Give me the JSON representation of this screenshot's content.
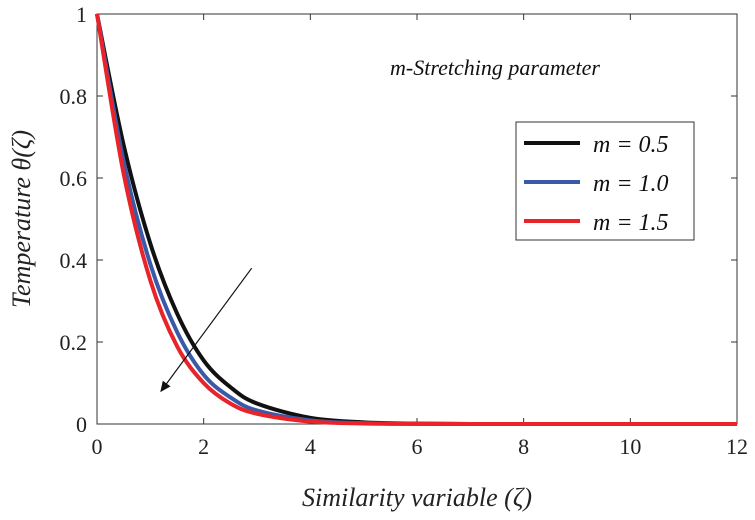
{
  "chart_data": {
    "type": "line",
    "title": "m-Stretching parameter",
    "xlabel": "Similarity variable (ζ)",
    "ylabel": "Temperature θ(ζ)",
    "xlim": [
      0,
      12
    ],
    "ylim": [
      0,
      1
    ],
    "xticks": [
      0,
      2,
      4,
      6,
      8,
      10,
      12
    ],
    "yticks": [
      0,
      0.2,
      0.4,
      0.6,
      0.8,
      1
    ],
    "ytick_labels": [
      "0",
      "0.2",
      "0.4",
      "0.6",
      "0.8",
      "1"
    ],
    "legend_position": "right",
    "x": [
      0,
      0.5,
      1,
      1.5,
      2,
      2.5,
      3,
      4,
      5,
      6,
      7,
      8,
      9,
      10,
      11,
      12
    ],
    "series": [
      {
        "name": "m = 0.5",
        "color": "#111111",
        "values": [
          1,
          0.68,
          0.44,
          0.27,
          0.155,
          0.09,
          0.05,
          0.015,
          0.004,
          0.001,
          0,
          0,
          0,
          0,
          0,
          0
        ]
      },
      {
        "name": "m = 1.0",
        "color": "#3a5aa8",
        "values": [
          1,
          0.64,
          0.39,
          0.225,
          0.12,
          0.065,
          0.033,
          0.009,
          0.002,
          0.0005,
          0,
          0,
          0,
          0,
          0,
          0
        ]
      },
      {
        "name": "m = 1.5",
        "color": "#e8232a",
        "values": [
          1,
          0.61,
          0.35,
          0.19,
          0.1,
          0.05,
          0.025,
          0.006,
          0.0012,
          0.0002,
          0,
          0,
          0,
          0,
          0,
          0
        ]
      }
    ],
    "annotation": {
      "text": "",
      "from": [
        2.9,
        0.38
      ],
      "to": [
        1.2,
        0.08
      ]
    }
  }
}
